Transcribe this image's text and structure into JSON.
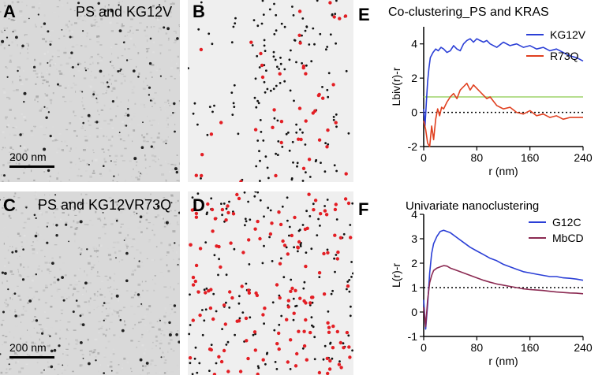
{
  "panels": {
    "A": {
      "letter": "A",
      "title": "PS and KG12V",
      "scale_label": "200 nm"
    },
    "B": {
      "letter": "B"
    },
    "C": {
      "letter": "C",
      "title": "PS and KG12VR73Q",
      "scale_label": "200 nm"
    },
    "D": {
      "letter": "D"
    },
    "E": {
      "letter": "E"
    },
    "F": {
      "letter": "F"
    }
  },
  "colors": {
    "red": "#e31e24",
    "black": "#111111",
    "blue": "#2b3fd6",
    "orange": "#e04020",
    "green": "#9ed36a",
    "maroon": "#8b2a52"
  },
  "chart_data": [
    {
      "id": "E",
      "type": "line",
      "title": "Co-clustering_PS and KRAS",
      "xlabel": "r (nm)",
      "ylabel": "Lbiv(r)-r",
      "xlim": [
        0,
        240
      ],
      "ylim": [
        -2,
        5
      ],
      "xticks": [
        0,
        80,
        160,
        240
      ],
      "yticks": [
        -2,
        0,
        2,
        4
      ],
      "ref_lines": [
        {
          "y": 0,
          "style": "dotted",
          "color": "#000000"
        },
        {
          "y": 0.9,
          "style": "solid",
          "color": "#9ed36a"
        }
      ],
      "series": [
        {
          "name": "KG12V",
          "color": "#2b3fd6",
          "x": [
            0,
            2,
            4,
            6,
            8,
            10,
            14,
            18,
            22,
            26,
            30,
            35,
            40,
            45,
            50,
            55,
            60,
            65,
            70,
            75,
            80,
            85,
            90,
            95,
            100,
            110,
            120,
            130,
            140,
            150,
            160,
            170,
            180,
            190,
            200,
            210,
            220,
            230,
            240
          ],
          "y": [
            0.2,
            -0.8,
            0.6,
            1.8,
            2.6,
            3.2,
            3.5,
            3.7,
            3.6,
            3.8,
            3.7,
            3.5,
            3.6,
            3.9,
            3.7,
            3.6,
            4.0,
            4.2,
            4.3,
            4.1,
            4.3,
            4.2,
            4.1,
            4.2,
            4.0,
            3.8,
            4.1,
            3.9,
            4.0,
            3.8,
            3.9,
            3.7,
            3.8,
            3.6,
            3.7,
            3.5,
            3.3,
            3.2,
            3.0
          ]
        },
        {
          "name": "R73Q",
          "color": "#e04020",
          "x": [
            0,
            3,
            6,
            9,
            12,
            15,
            18,
            21,
            24,
            27,
            30,
            35,
            40,
            45,
            50,
            55,
            60,
            65,
            70,
            75,
            80,
            85,
            90,
            95,
            100,
            110,
            120,
            130,
            140,
            150,
            160,
            170,
            180,
            190,
            200,
            210,
            220,
            230,
            240
          ],
          "y": [
            -0.5,
            -1.0,
            -1.8,
            -2.0,
            -0.8,
            -1.6,
            -0.4,
            0.2,
            -0.2,
            0.3,
            0.2,
            0.6,
            0.9,
            1.1,
            0.8,
            1.3,
            1.5,
            1.7,
            1.3,
            1.6,
            1.4,
            1.2,
            1.0,
            0.8,
            0.9,
            0.4,
            0.2,
            0.3,
            0.0,
            -0.1,
            0.1,
            -0.2,
            -0.1,
            -0.3,
            -0.2,
            -0.4,
            -0.3,
            -0.3,
            -0.3
          ]
        }
      ]
    },
    {
      "id": "F",
      "type": "line",
      "title": "Univariate nanoclustering",
      "xlabel": "r (nm)",
      "ylabel": "L(r)-r",
      "xlim": [
        0,
        240
      ],
      "ylim": [
        -1,
        4
      ],
      "xticks": [
        0,
        80,
        160,
        240
      ],
      "yticks": [
        -1,
        0,
        1,
        2,
        3,
        4
      ],
      "ref_lines": [
        {
          "y": 1,
          "style": "dotted",
          "color": "#000000"
        }
      ],
      "series": [
        {
          "name": "G12C",
          "color": "#2b3fd6",
          "x": [
            0,
            3,
            6,
            9,
            12,
            15,
            20,
            25,
            30,
            35,
            40,
            50,
            60,
            70,
            80,
            90,
            100,
            110,
            120,
            130,
            140,
            150,
            160,
            170,
            180,
            190,
            200,
            210,
            220,
            230,
            240
          ],
          "y": [
            0.5,
            -0.7,
            0.3,
            1.6,
            2.4,
            2.8,
            3.1,
            3.3,
            3.35,
            3.3,
            3.25,
            3.05,
            2.85,
            2.65,
            2.5,
            2.35,
            2.2,
            2.1,
            1.95,
            1.85,
            1.75,
            1.65,
            1.6,
            1.55,
            1.5,
            1.45,
            1.45,
            1.4,
            1.38,
            1.35,
            1.3
          ]
        },
        {
          "name": "MbCD",
          "color": "#8b2a52",
          "x": [
            0,
            3,
            6,
            9,
            12,
            15,
            20,
            25,
            30,
            35,
            40,
            50,
            60,
            70,
            80,
            90,
            100,
            110,
            120,
            130,
            140,
            150,
            160,
            170,
            180,
            190,
            200,
            210,
            220,
            230,
            240
          ],
          "y": [
            0.2,
            -0.6,
            0.5,
            1.2,
            1.5,
            1.7,
            1.8,
            1.85,
            1.9,
            1.88,
            1.8,
            1.7,
            1.6,
            1.5,
            1.4,
            1.3,
            1.22,
            1.15,
            1.1,
            1.05,
            1.0,
            0.95,
            0.92,
            0.9,
            0.88,
            0.85,
            0.82,
            0.8,
            0.78,
            0.77,
            0.75
          ]
        }
      ]
    }
  ]
}
